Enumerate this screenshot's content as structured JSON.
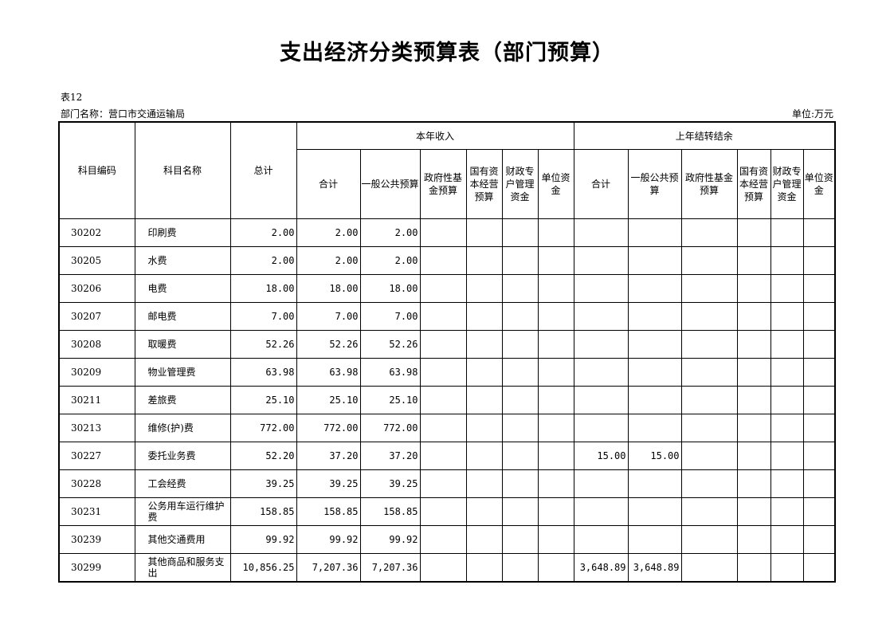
{
  "title": "支出经济分类预算表（部门预算）",
  "table_no": "表12",
  "department": "部门名称：营口市交通运输局",
  "unit": "单位:万元",
  "headers": {
    "code": "科目编码",
    "name": "科目名称",
    "total": "总计",
    "current_year": "本年收入",
    "prior_year": "上年结转结余",
    "cur_cols": [
      "合计",
      "一般公共预算",
      "政府性基金预算",
      "国有资本经营预算",
      "财政专户管理资金",
      "单位资金"
    ],
    "prior_cols": [
      "合计",
      "一般公共预算",
      "政府性基金预算",
      "国有资本经营预算",
      "财政专户管理资金",
      "单位资金"
    ]
  },
  "rows": [
    [
      "30202",
      "印刷费",
      "2.00",
      "2.00",
      "2.00",
      "",
      "",
      "",
      "",
      "",
      "",
      "",
      "",
      "",
      ""
    ],
    [
      "30205",
      "水费",
      "2.00",
      "2.00",
      "2.00",
      "",
      "",
      "",
      "",
      "",
      "",
      "",
      "",
      "",
      ""
    ],
    [
      "30206",
      "电费",
      "18.00",
      "18.00",
      "18.00",
      "",
      "",
      "",
      "",
      "",
      "",
      "",
      "",
      "",
      ""
    ],
    [
      "30207",
      "邮电费",
      "7.00",
      "7.00",
      "7.00",
      "",
      "",
      "",
      "",
      "",
      "",
      "",
      "",
      "",
      ""
    ],
    [
      "30208",
      "取暖费",
      "52.26",
      "52.26",
      "52.26",
      "",
      "",
      "",
      "",
      "",
      "",
      "",
      "",
      "",
      ""
    ],
    [
      "30209",
      "物业管理费",
      "63.98",
      "63.98",
      "63.98",
      "",
      "",
      "",
      "",
      "",
      "",
      "",
      "",
      "",
      ""
    ],
    [
      "30211",
      "差旅费",
      "25.10",
      "25.10",
      "25.10",
      "",
      "",
      "",
      "",
      "",
      "",
      "",
      "",
      "",
      ""
    ],
    [
      "30213",
      "维修(护)费",
      "772.00",
      "772.00",
      "772.00",
      "",
      "",
      "",
      "",
      "",
      "",
      "",
      "",
      "",
      ""
    ],
    [
      "30227",
      "委托业务费",
      "52.20",
      "37.20",
      "37.20",
      "",
      "",
      "",
      "",
      "15.00",
      "15.00",
      "",
      "",
      "",
      ""
    ],
    [
      "30228",
      "工会经费",
      "39.25",
      "39.25",
      "39.25",
      "",
      "",
      "",
      "",
      "",
      "",
      "",
      "",
      "",
      ""
    ],
    [
      "30231",
      "公务用车运行维护费",
      "158.85",
      "158.85",
      "158.85",
      "",
      "",
      "",
      "",
      "",
      "",
      "",
      "",
      "",
      ""
    ],
    [
      "30239",
      "其他交通费用",
      "99.92",
      "99.92",
      "99.92",
      "",
      "",
      "",
      "",
      "",
      "",
      "",
      "",
      "",
      ""
    ],
    [
      "30299",
      "其他商品和服务支出",
      "10,856.25",
      "7,207.36",
      "7,207.36",
      "",
      "",
      "",
      "",
      "3,648.89",
      "3,648.89",
      "",
      "",
      "",
      ""
    ]
  ]
}
